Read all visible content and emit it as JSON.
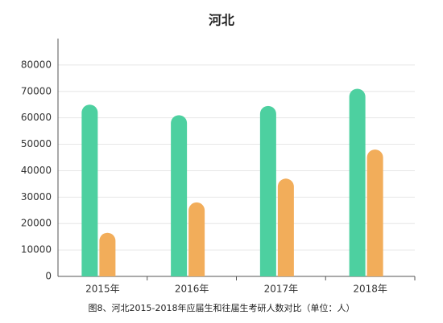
{
  "chart_data": {
    "type": "bar",
    "title": "河北",
    "caption": "图8、河北2015-2018年应届生和往届生考研人数对比（单位：人）",
    "categories": [
      "2015年",
      "2016年",
      "2017年",
      "2018年"
    ],
    "series": [
      {
        "color": "#4dd0a0",
        "values": [
          65000,
          61000,
          64500,
          71000
        ]
      },
      {
        "color": "#f2ad5a",
        "values": [
          16500,
          28000,
          37000,
          48000
        ]
      }
    ],
    "ylim": [
      0,
      90000
    ],
    "yticks": [
      0,
      10000,
      20000,
      30000,
      40000,
      50000,
      60000,
      70000,
      80000
    ],
    "grid": true
  }
}
